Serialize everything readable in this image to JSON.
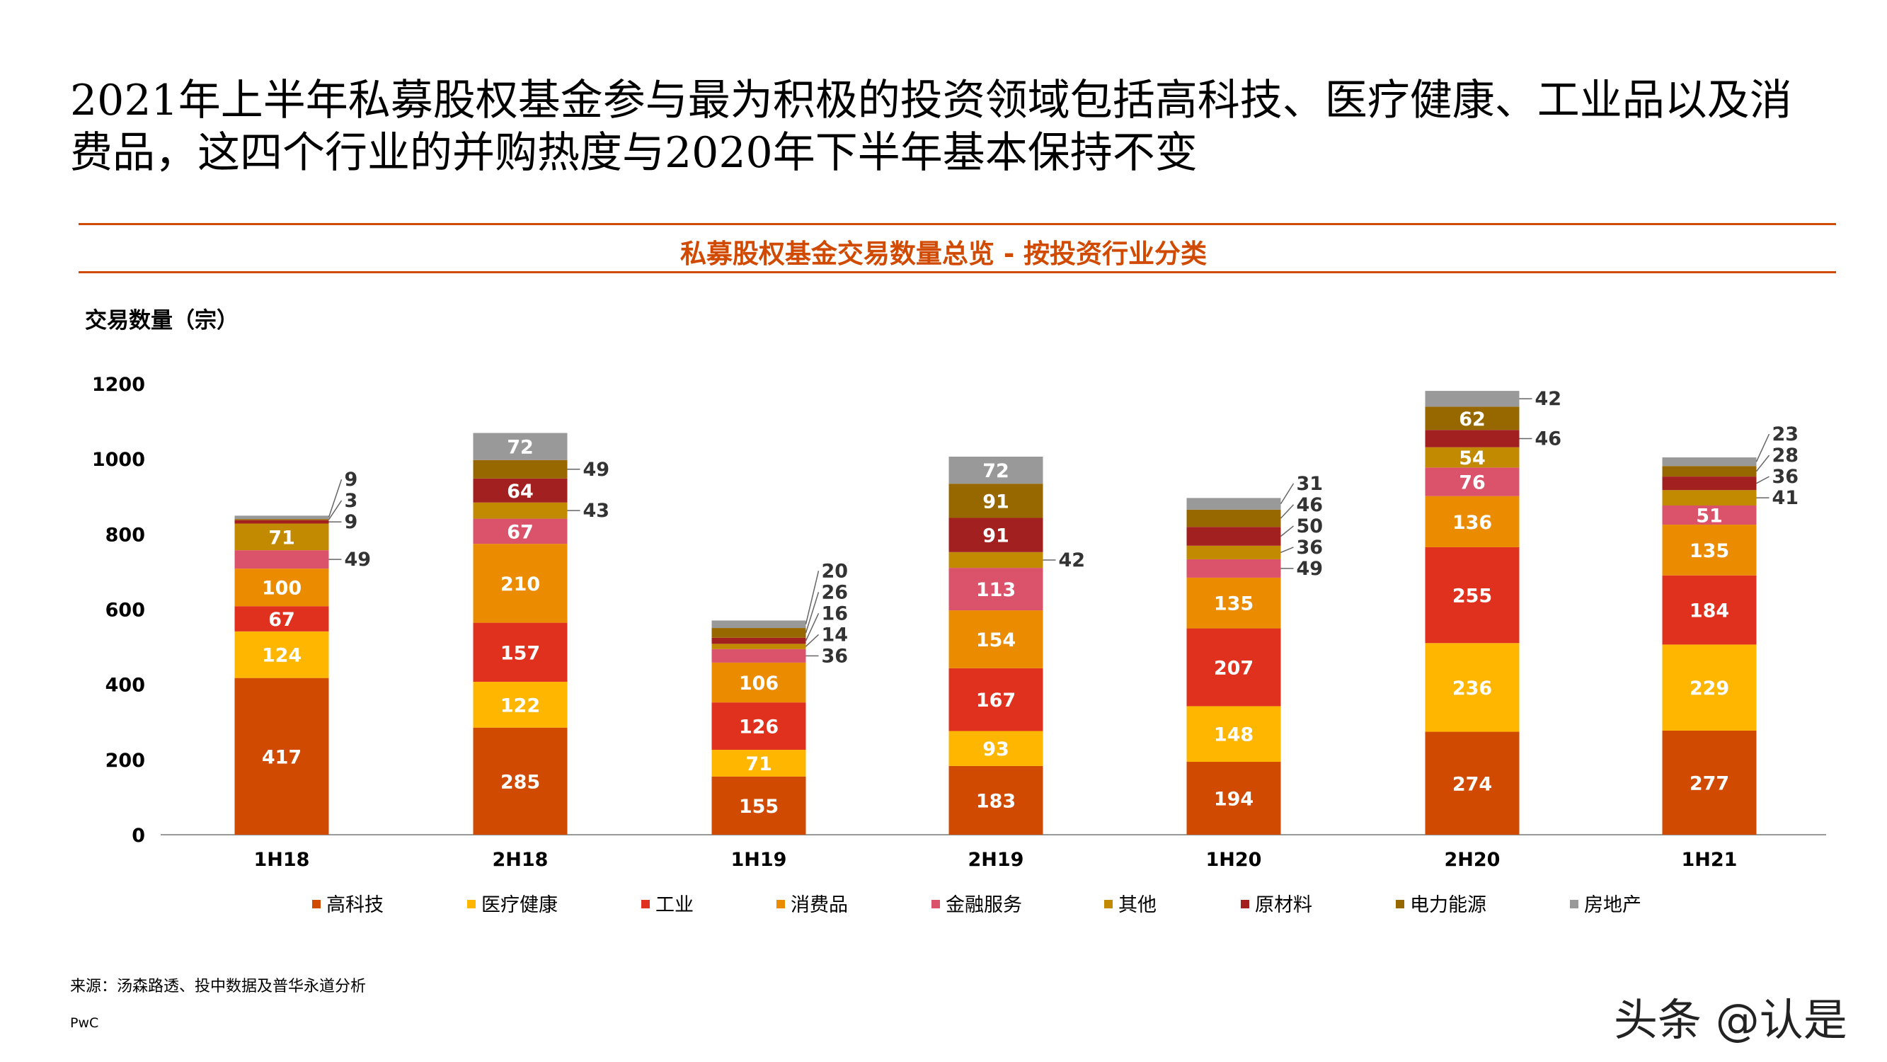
{
  "title": "2021年上半年私募股权基金参与最为积极的投资领域包括高科技、医疗健康、工业品以及消费品，这四个行业的并购热度与2020年下半年基本保持不变",
  "source": "来源：汤森路透、投中数据及普华永道分析",
  "brand": "PwC",
  "watermark": "头条 @认是",
  "chart_data": {
    "type": "bar",
    "stacked": true,
    "title": "私募股权基金交易数量总览 - 按投资行业分类",
    "ylabel": "交易数量（宗）",
    "xlabel": "",
    "ylim": [
      0,
      1200
    ],
    "yticks": [
      0,
      200,
      400,
      600,
      800,
      1000,
      1200
    ],
    "grid": false,
    "legend_position": "bottom",
    "categories": [
      "1H18",
      "2H18",
      "1H19",
      "2H19",
      "1H20",
      "2H20",
      "1H21"
    ],
    "series": [
      {
        "name": "高科技",
        "color": "#D04A02",
        "values": [
          417,
          285,
          155,
          183,
          194,
          274,
          277
        ]
      },
      {
        "name": "医疗健康",
        "color": "#FFB600",
        "values": [
          124,
          122,
          71,
          93,
          148,
          236,
          229
        ]
      },
      {
        "name": "工业",
        "color": "#E0301E",
        "values": [
          67,
          157,
          126,
          167,
          207,
          255,
          184
        ]
      },
      {
        "name": "消费品",
        "color": "#EB8C00",
        "values": [
          100,
          210,
          106,
          154,
          135,
          136,
          135
        ]
      },
      {
        "name": "金融服务",
        "color": "#DB536A",
        "values": [
          49,
          67,
          36,
          113,
          49,
          76,
          51
        ]
      },
      {
        "name": "其他",
        "color": "#C28A00",
        "values": [
          71,
          43,
          14,
          42,
          36,
          54,
          41
        ]
      },
      {
        "name": "原材料",
        "color": "#A32020",
        "values": [
          9,
          64,
          16,
          91,
          50,
          46,
          36
        ]
      },
      {
        "name": "电力能源",
        "color": "#986800",
        "values": [
          3,
          49,
          26,
          91,
          46,
          62,
          28
        ]
      },
      {
        "name": "房地产",
        "color": "#999999",
        "values": [
          9,
          72,
          20,
          72,
          31,
          42,
          23
        ]
      }
    ]
  }
}
